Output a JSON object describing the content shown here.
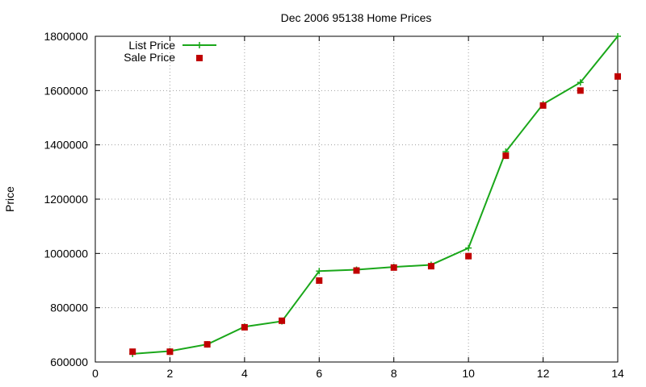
{
  "chart_data": {
    "type": "line",
    "title": "Dec 2006 95138 Home Prices",
    "xlabel": "",
    "ylabel": "Price",
    "xlim": [
      0,
      14
    ],
    "ylim": [
      600000,
      1800000
    ],
    "xticks": [
      0,
      2,
      4,
      6,
      8,
      10,
      12,
      14
    ],
    "yticks": [
      600000,
      800000,
      1000000,
      1200000,
      1400000,
      1600000,
      1800000
    ],
    "grid": true,
    "legend_position": "top-left",
    "series": [
      {
        "name": "List Price",
        "style": "line-with-plus-markers",
        "color": "#1aa71a",
        "x": [
          1,
          2,
          3,
          4,
          5,
          6,
          7,
          8,
          9,
          10,
          11,
          12,
          13,
          14
        ],
        "y": [
          630000,
          640000,
          665000,
          730000,
          750000,
          935000,
          940000,
          950000,
          958000,
          1020000,
          1375000,
          1550000,
          1630000,
          1800000
        ]
      },
      {
        "name": "Sale Price",
        "style": "square-markers",
        "color": "#c00000",
        "x": [
          1,
          2,
          3,
          4,
          5,
          6,
          7,
          8,
          9,
          10,
          11,
          12,
          13,
          14
        ],
        "y": [
          638000,
          638000,
          665000,
          728000,
          752000,
          900000,
          937000,
          948000,
          953000,
          990000,
          1360000,
          1545000,
          1600000,
          1652000
        ]
      }
    ]
  }
}
